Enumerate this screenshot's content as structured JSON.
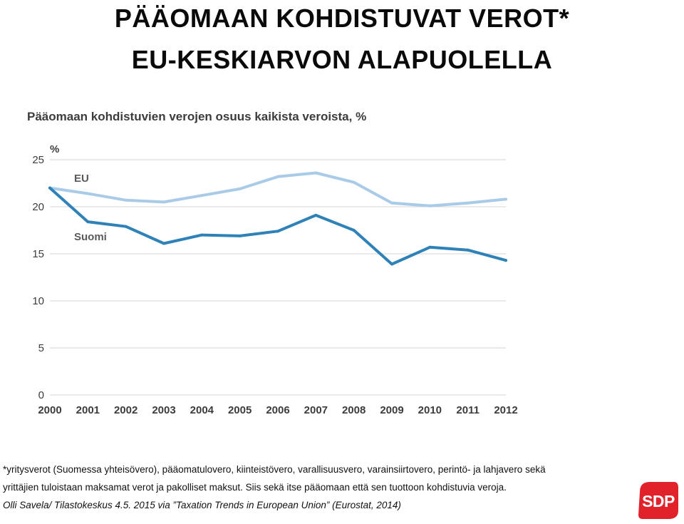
{
  "headline": {
    "line1": "PÄÄOMAAN KOHDISTUVAT VEROT*",
    "line2": "EU-KESKIARVON ALAPUOLELLA"
  },
  "chart_data": {
    "type": "line",
    "title": "Pääomaan kohdistuvien verojen osuus kaikista veroista, %",
    "unit_label": "%",
    "x": [
      "2000",
      "2001",
      "2002",
      "2003",
      "2004",
      "2005",
      "2006",
      "2007",
      "2008",
      "2009",
      "2010",
      "2011",
      "2012"
    ],
    "yticks": [
      0,
      5,
      10,
      15,
      20,
      25
    ],
    "ylim": [
      0,
      25
    ],
    "grid": true,
    "series": [
      {
        "name": "EU",
        "color": "#a9cbe8",
        "values": [
          22.0,
          21.4,
          20.7,
          20.5,
          21.2,
          21.9,
          23.2,
          23.6,
          22.6,
          20.4,
          20.1,
          20.4,
          20.8
        ]
      },
      {
        "name": "Suomi",
        "color": "#2f82b8",
        "values": [
          22.0,
          18.4,
          17.9,
          16.1,
          17.0,
          16.9,
          17.4,
          19.1,
          17.5,
          13.9,
          15.7,
          15.4,
          14.3
        ]
      }
    ]
  },
  "footnote": {
    "line1": "*yritysverot (Suomessa yhteisövero), pääomatulovero, kiinteistövero, varallisuusvero, varainsiirtovero, perintö- ja lahjavero sekä",
    "line2": "yrittäjien tuloistaan maksamat verot ja pakolliset maksut. Siis sekä itse pääomaan että sen tuottoon kohdistuvia veroja.",
    "source": "Olli Savela/ Tilastokeskus 4.5. 2015 via ”Taxation Trends in European Union” (Eurostat, 2014)"
  },
  "logo": {
    "text": "SDP",
    "color": "#e1222b"
  }
}
